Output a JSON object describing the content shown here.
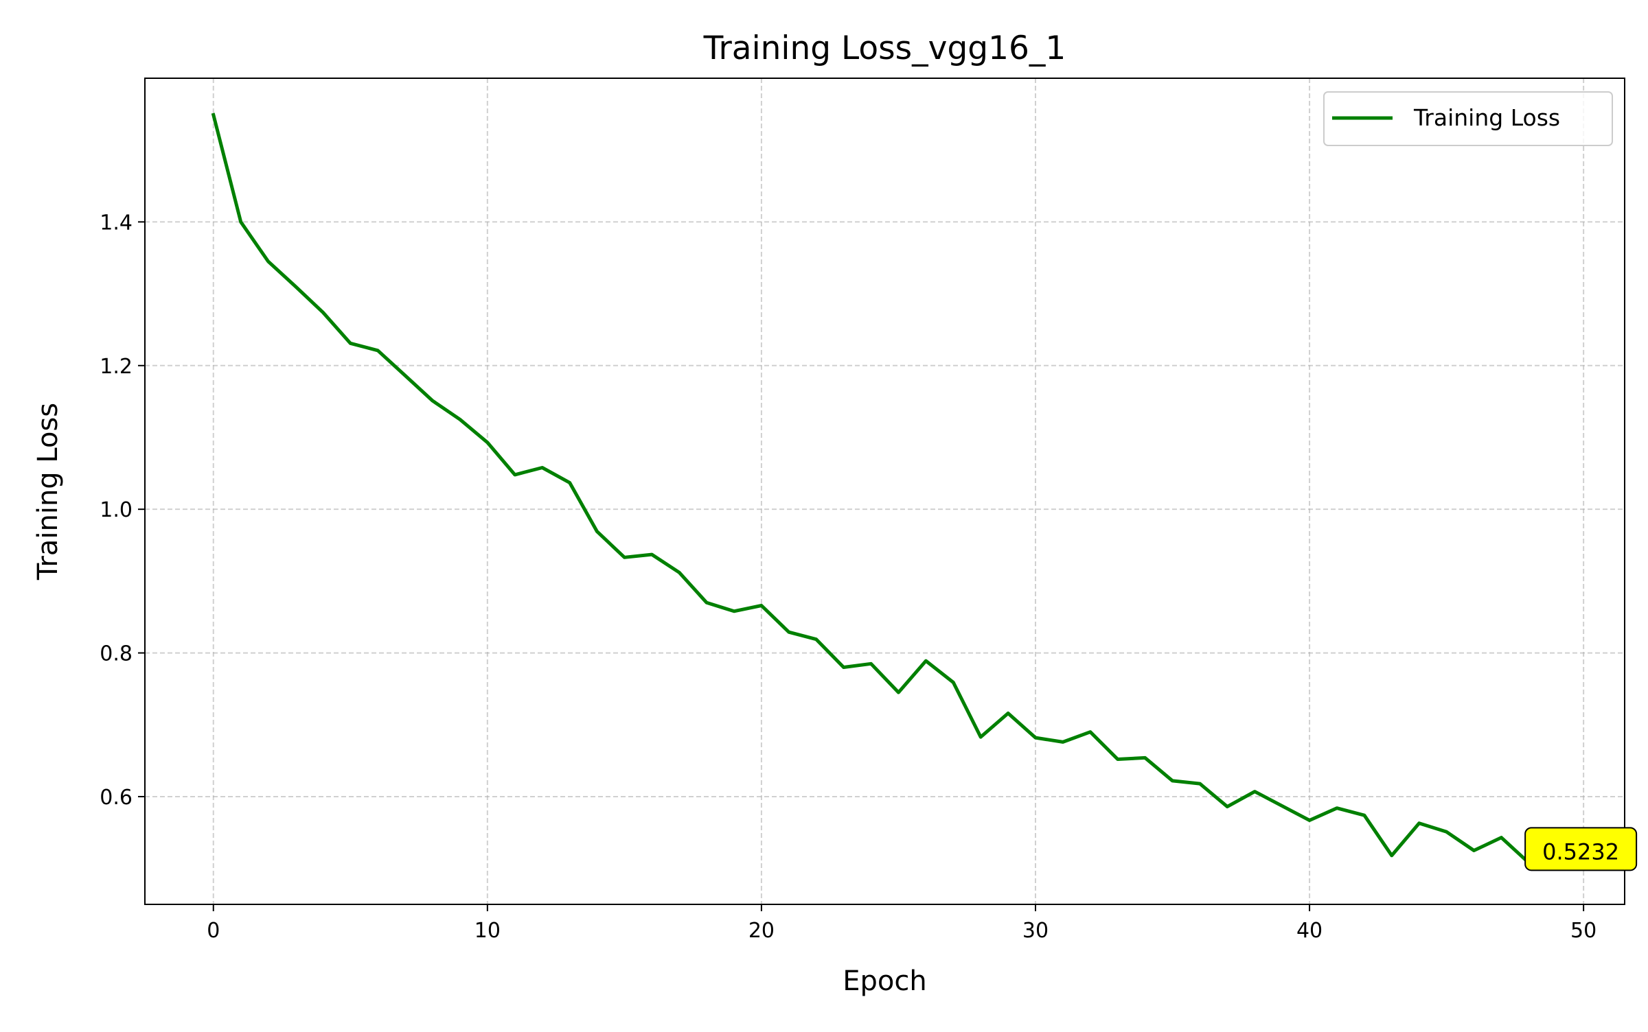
{
  "chart_data": {
    "type": "line",
    "title": "Training Loss_vgg16_1",
    "xlabel": "Epoch",
    "ylabel": "Training Loss",
    "xlim": [
      -2.5,
      51.5
    ],
    "ylim": [
      0.45,
      1.6
    ],
    "xticks": [
      0,
      10,
      20,
      30,
      40,
      50
    ],
    "yticks": [
      0.6,
      0.8,
      1.0,
      1.2,
      1.4
    ],
    "xtick_labels": [
      "0",
      "10",
      "20",
      "30",
      "40",
      "50"
    ],
    "ytick_labels": [
      "0.6",
      "0.8",
      "1.0",
      "1.2",
      "1.4"
    ],
    "grid": true,
    "legend_position": "top-right",
    "series": [
      {
        "name": "Training Loss",
        "color": "#008000",
        "x": [
          0,
          1,
          2,
          3,
          4,
          5,
          6,
          7,
          8,
          9,
          10,
          11,
          12,
          13,
          14,
          15,
          16,
          17,
          18,
          19,
          20,
          21,
          22,
          23,
          24,
          25,
          26,
          27,
          28,
          29,
          30,
          31,
          32,
          33,
          34,
          35,
          36,
          37,
          38,
          39,
          40,
          41,
          42,
          43,
          44,
          45,
          46,
          47,
          48,
          49,
          50
        ],
        "y": [
          1.549,
          1.4,
          1.345,
          1.31,
          1.274,
          1.231,
          1.221,
          1.186,
          1.151,
          1.125,
          1.093,
          1.048,
          1.058,
          1.037,
          0.969,
          0.933,
          0.937,
          0.912,
          0.87,
          0.858,
          0.866,
          0.829,
          0.819,
          0.78,
          0.785,
          0.745,
          0.789,
          0.759,
          0.683,
          0.716,
          0.682,
          0.676,
          0.69,
          0.652,
          0.654,
          0.622,
          0.618,
          0.586,
          0.607,
          0.587,
          0.567,
          0.584,
          0.574,
          0.518,
          0.563,
          0.551,
          0.525,
          0.543,
          0.508,
          0.521,
          0.5232
        ]
      }
    ],
    "annotation": {
      "text": "0.5232",
      "x": 50,
      "y": 0.5232,
      "background": "#ffff00"
    }
  }
}
